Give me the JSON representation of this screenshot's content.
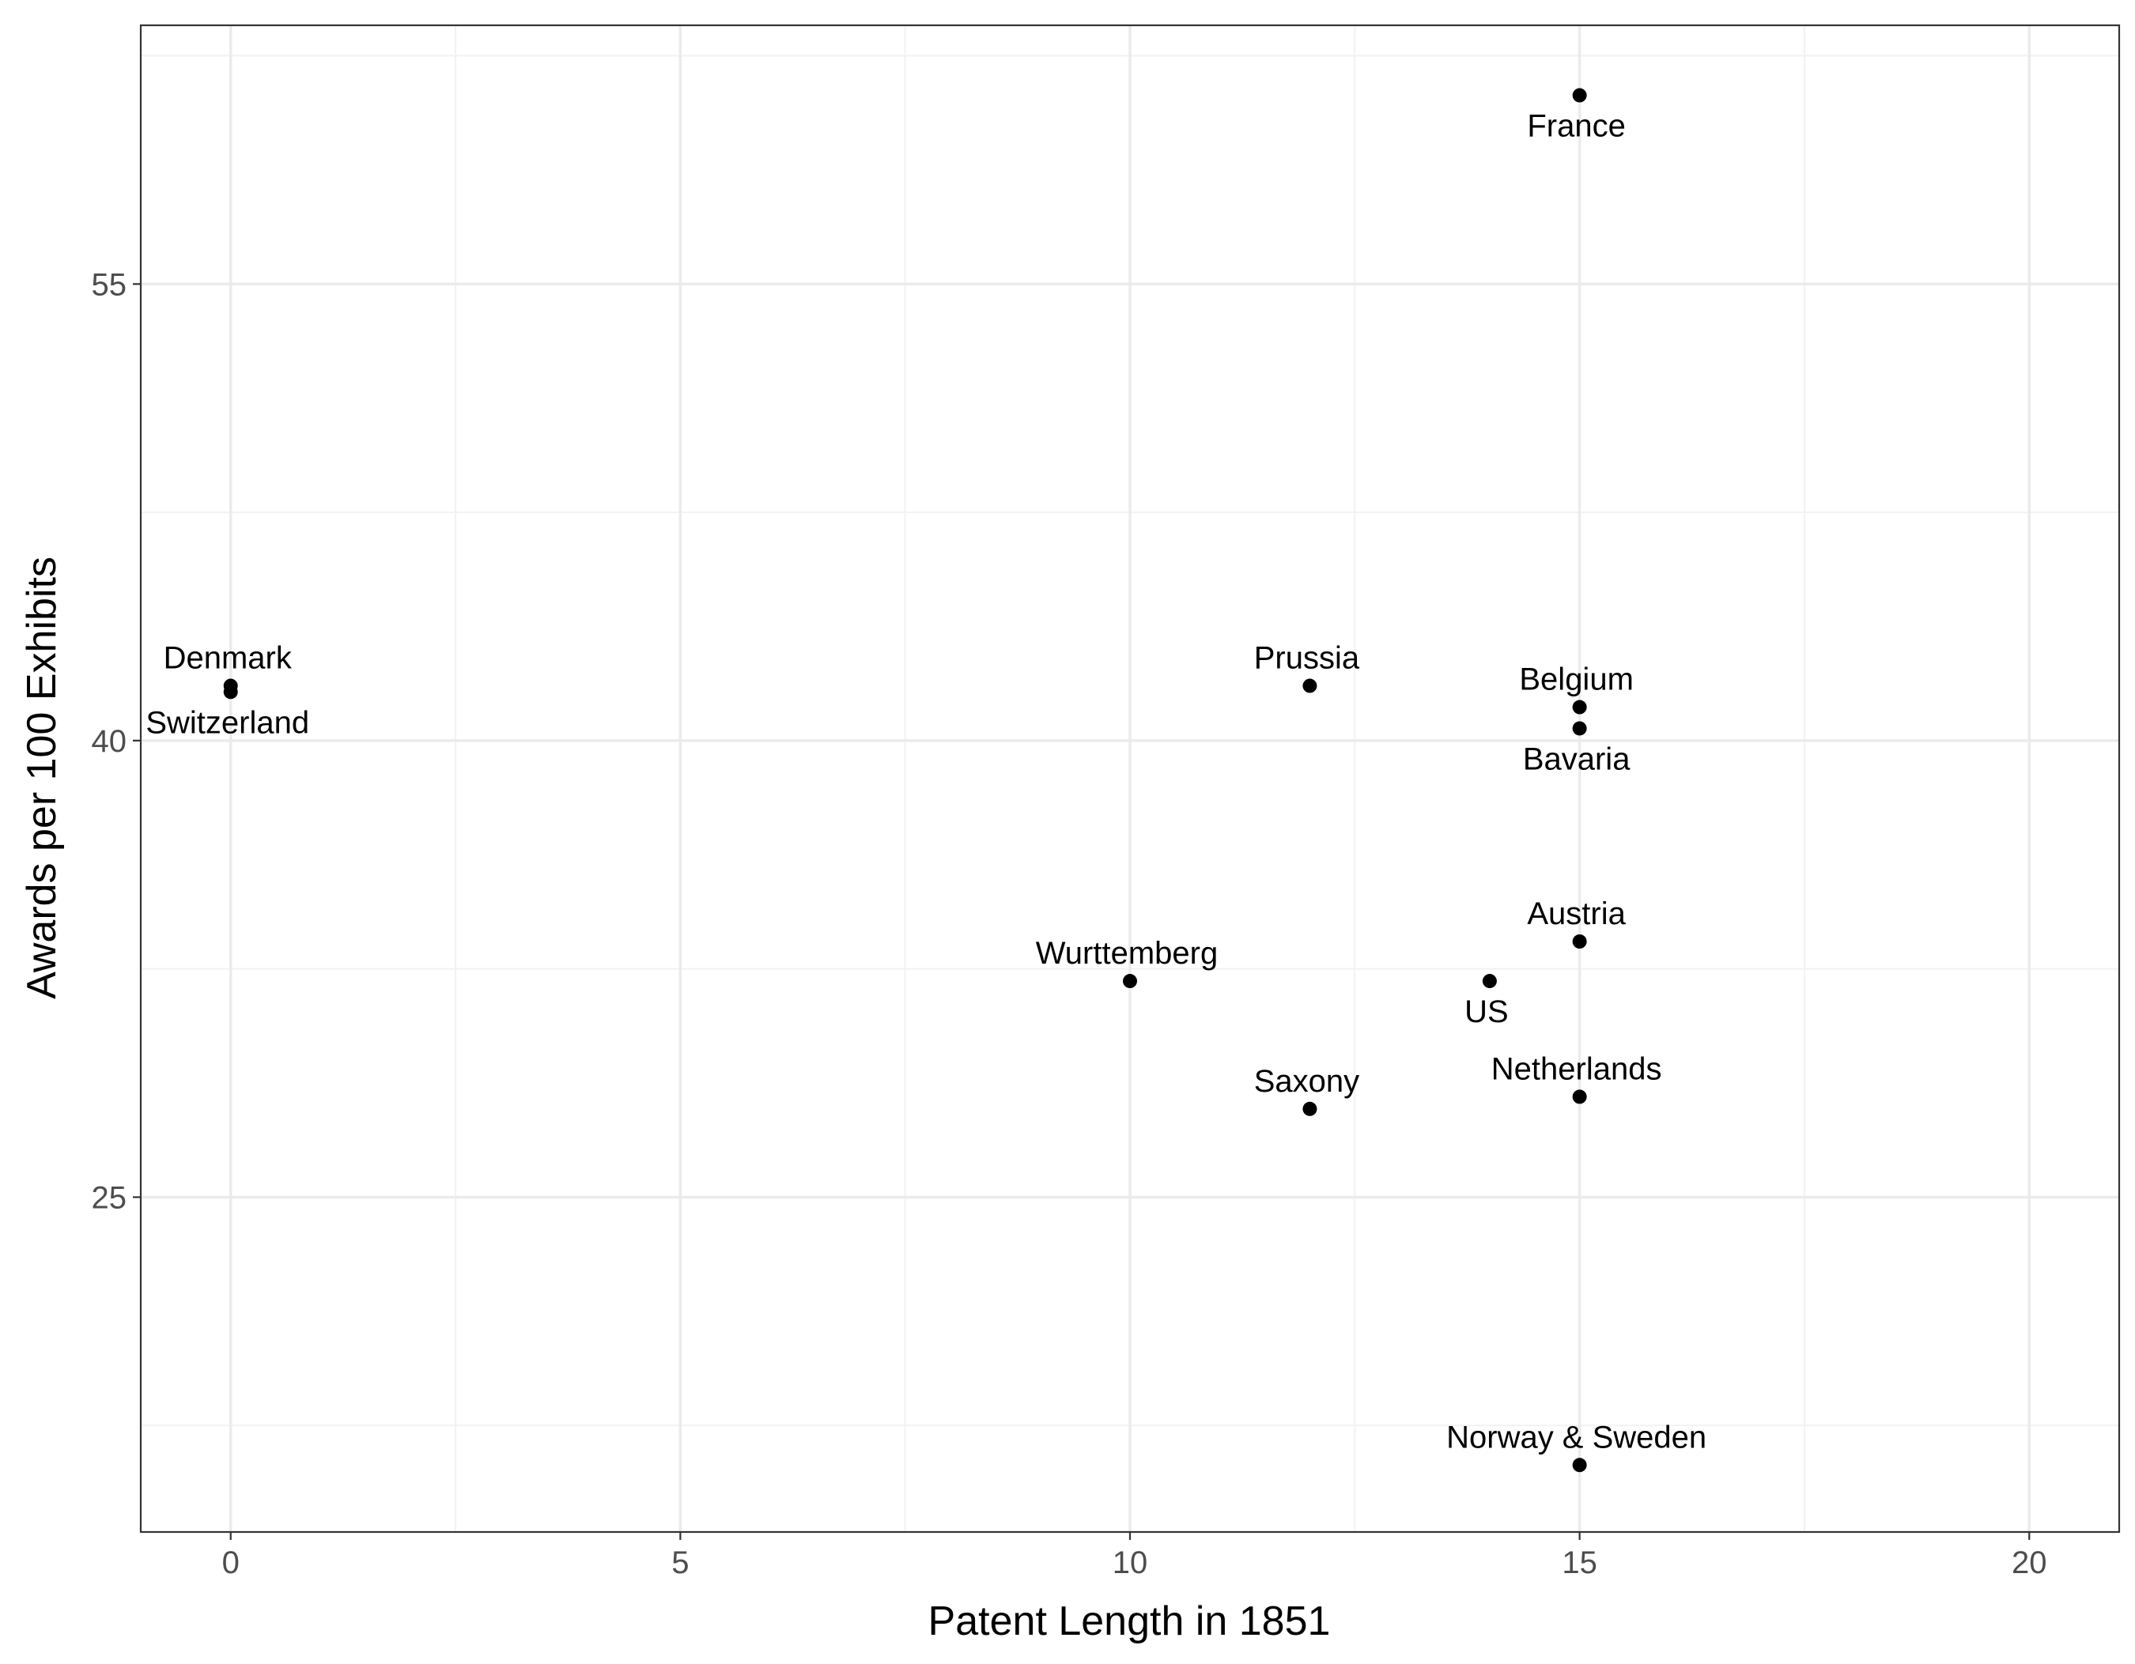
{
  "chart_data": {
    "type": "scatter",
    "title": "",
    "xlabel": "Patent Length in 1851",
    "ylabel": "Awards per 100 Exhibits",
    "xlim": [
      -1,
      21
    ],
    "ylim": [
      14,
      63.5
    ],
    "x_ticks": [
      0,
      5,
      10,
      15,
      20
    ],
    "x_tick_labels": [
      "0",
      "5",
      "10",
      "15",
      "20"
    ],
    "y_ticks": [
      25,
      40,
      55
    ],
    "y_tick_labels": [
      "25",
      "40",
      "55"
    ],
    "x_minor_ticks": [
      2.5,
      7.5,
      12.5,
      17.5
    ],
    "y_minor_ticks": [
      17.5,
      32.5,
      47.5,
      62.5
    ],
    "grid": true,
    "theme": "bw",
    "points": [
      {
        "label": "France",
        "x": 15,
        "y": 61.2,
        "label_pos": "below"
      },
      {
        "label": "Denmark",
        "x": 0,
        "y": 41.8,
        "label_pos": "above"
      },
      {
        "label": "Switzerland",
        "x": 0,
        "y": 41.6,
        "label_pos": "below"
      },
      {
        "label": "Prussia",
        "x": 12,
        "y": 41.8,
        "label_pos": "above"
      },
      {
        "label": "Belgium",
        "x": 15,
        "y": 41.1,
        "label_pos": "above"
      },
      {
        "label": "Bavaria",
        "x": 15,
        "y": 40.4,
        "label_pos": "below"
      },
      {
        "label": "Austria",
        "x": 15,
        "y": 33.4,
        "label_pos": "above"
      },
      {
        "label": "Wurttemberg",
        "x": 10,
        "y": 32.1,
        "label_pos": "above"
      },
      {
        "label": "US",
        "x": 14,
        "y": 32.1,
        "label_pos": "below"
      },
      {
        "label": "Netherlands",
        "x": 15,
        "y": 28.3,
        "label_pos": "above"
      },
      {
        "label": "Saxony",
        "x": 12,
        "y": 27.9,
        "label_pos": "above"
      },
      {
        "label": "Norway & Sweden",
        "x": 15,
        "y": 16.2,
        "label_pos": "above"
      }
    ],
    "colors": {
      "points": "#000000",
      "panel_border": "#333333",
      "grid_major": "#ebebeb",
      "grid_minor": "#f2f2f2",
      "tick_text": "#4d4d4d"
    }
  }
}
